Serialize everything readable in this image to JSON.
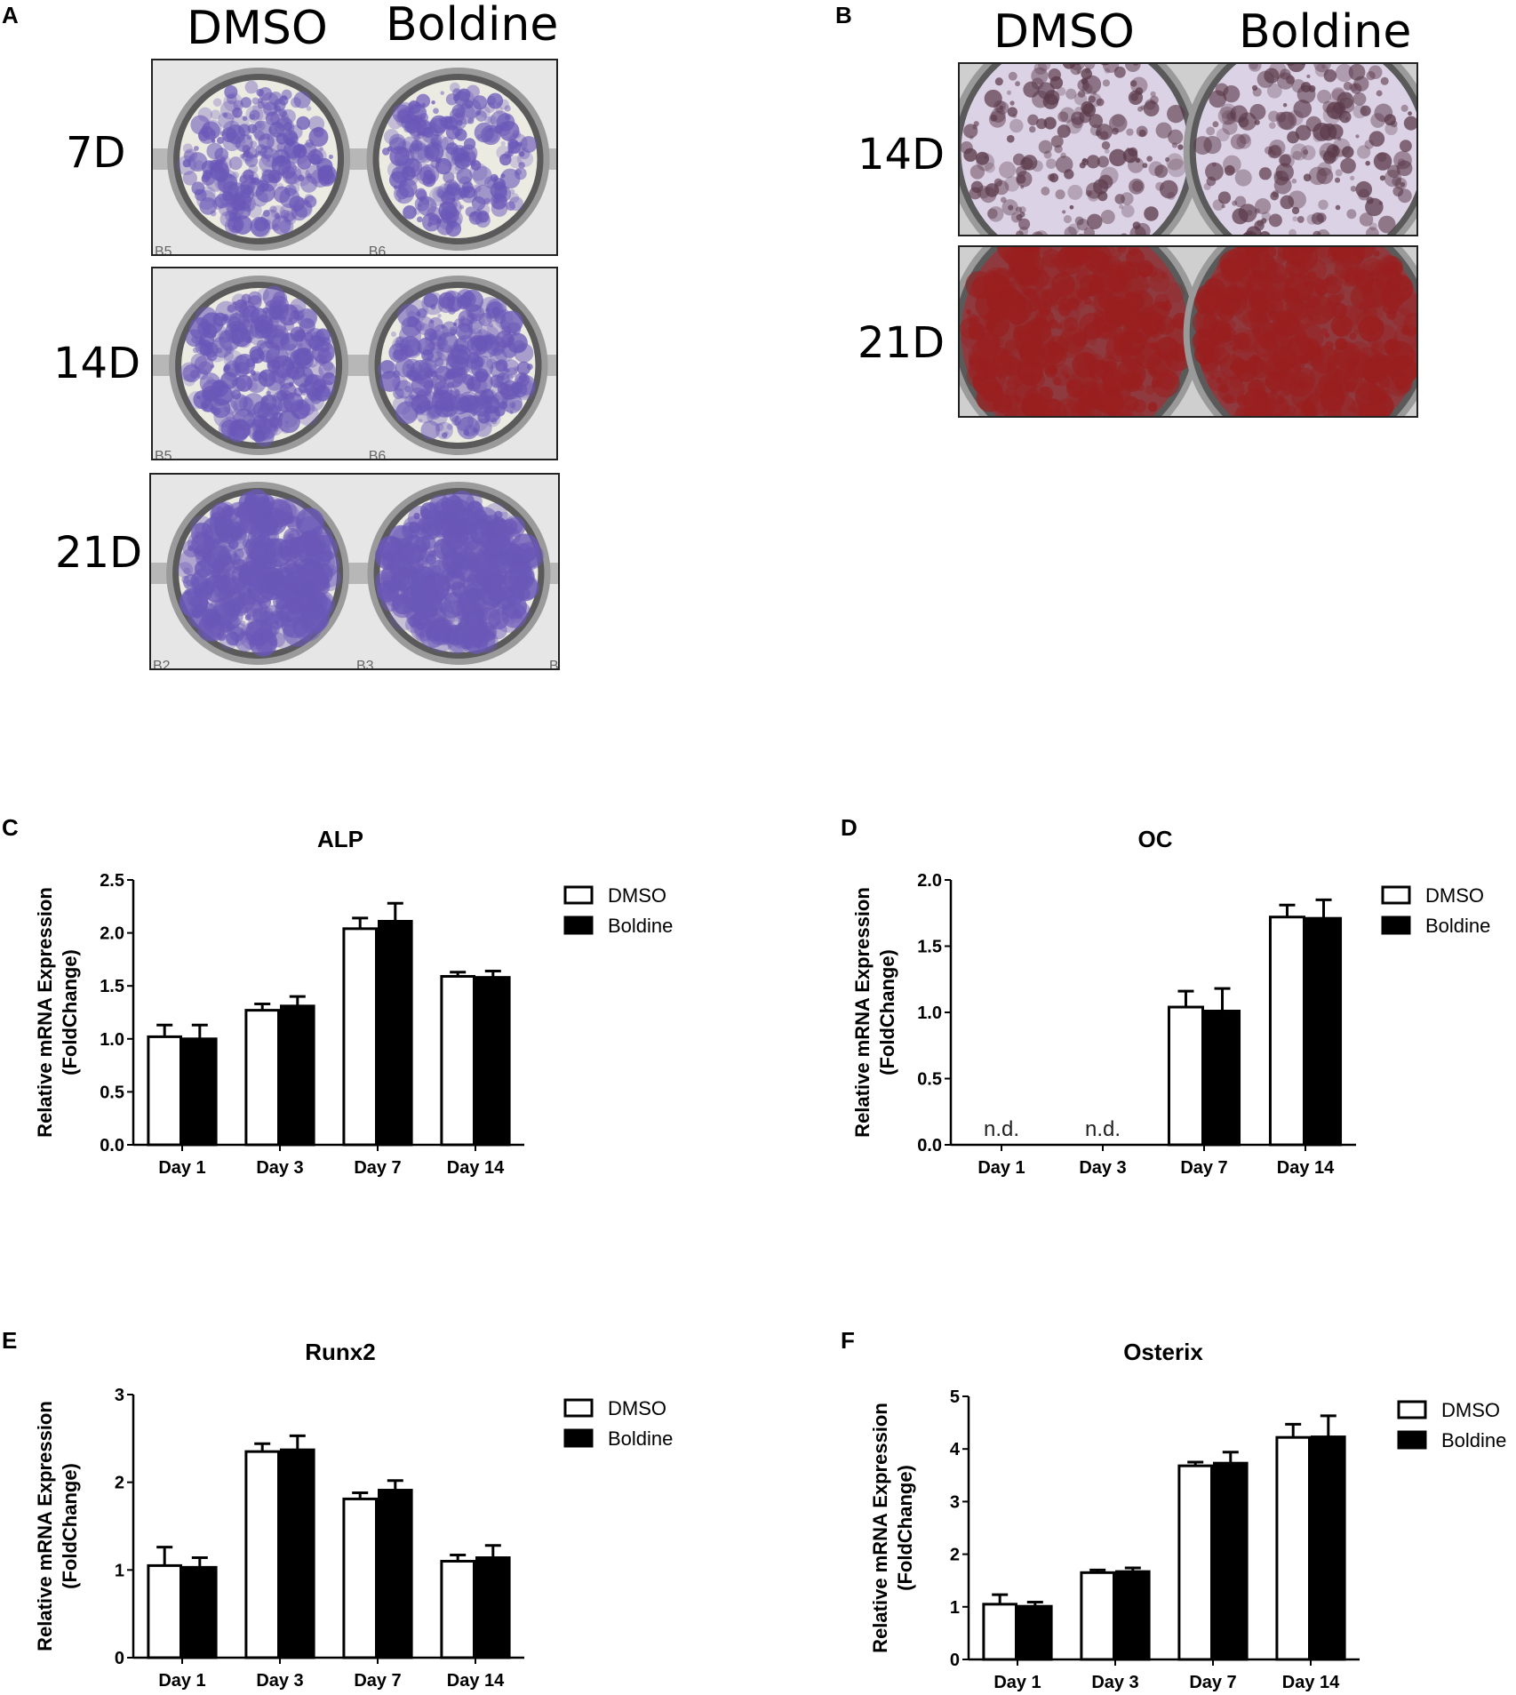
{
  "panels": {
    "A": {
      "letter": "A",
      "col_labels": [
        "DMSO",
        "Boldine"
      ],
      "rows": [
        {
          "label": "7D",
          "well_labels": [
            "B5",
            "B6"
          ],
          "stain": "alp",
          "intensity": 0.35
        },
        {
          "label": "14D",
          "well_labels": [
            "B5",
            "B6"
          ],
          "stain": "alp",
          "intensity": 0.5
        },
        {
          "label": "21D",
          "well_labels": [
            "B2",
            "B3",
            "B"
          ],
          "stain": "alp",
          "intensity": 0.85
        }
      ]
    },
    "B": {
      "letter": "B",
      "col_labels": [
        "DMSO",
        "Boldine"
      ],
      "rows": [
        {
          "label": "14D",
          "stain": "ars",
          "intensity": 0.25
        },
        {
          "label": "21D",
          "stain": "ars",
          "intensity": 0.9
        }
      ]
    }
  },
  "colors": {
    "alp_purple": "#6a58b8",
    "ars_red": "#9a1f1f",
    "plate_grey": "#b7b7b7",
    "bar_white": "#ffffff",
    "bar_black": "#000000"
  },
  "chart_data": [
    {
      "letter": "C",
      "type": "bar",
      "title": "ALP",
      "ylabel": [
        "Relative mRNA Expression",
        "(FoldChange)"
      ],
      "categories": [
        "Day 1",
        "Day 3",
        "Day 7",
        "Day 14"
      ],
      "ylim": [
        0,
        2.5
      ],
      "yticks": [
        "0.0",
        "0.5",
        "1.0",
        "1.5",
        "2.0",
        "2.5"
      ],
      "series": [
        {
          "name": "DMSO",
          "values": [
            1.02,
            1.27,
            2.04,
            1.59
          ],
          "errors": [
            0.11,
            0.06,
            0.1,
            0.04
          ]
        },
        {
          "name": "Boldine",
          "values": [
            1.0,
            1.31,
            2.11,
            1.58
          ],
          "errors": [
            0.13,
            0.09,
            0.17,
            0.06
          ]
        }
      ],
      "annotations": []
    },
    {
      "letter": "D",
      "type": "bar",
      "title": "OC",
      "ylabel": [
        "Relative mRNA Expression",
        "(FoldChange)"
      ],
      "categories": [
        "Day 1",
        "Day 3",
        "Day 7",
        "Day 14"
      ],
      "ylim": [
        0,
        2.0
      ],
      "yticks": [
        "0.0",
        "0.5",
        "1.0",
        "1.5",
        "2.0"
      ],
      "series": [
        {
          "name": "DMSO",
          "values": [
            null,
            null,
            1.04,
            1.72
          ],
          "errors": [
            0,
            0,
            0.12,
            0.09
          ]
        },
        {
          "name": "Boldine",
          "values": [
            null,
            null,
            1.01,
            1.71
          ],
          "errors": [
            0,
            0,
            0.17,
            0.14
          ]
        }
      ],
      "annotations": [
        "n.d.",
        "n.d."
      ]
    },
    {
      "letter": "E",
      "type": "bar",
      "title": "Runx2",
      "ylabel": [
        "Relative mRNA Expression",
        "(FoldChange)"
      ],
      "categories": [
        "Day 1",
        "Day 3",
        "Day 7",
        "Day 14"
      ],
      "ylim": [
        0,
        3
      ],
      "yticks": [
        "0",
        "1",
        "2",
        "3"
      ],
      "series": [
        {
          "name": "DMSO",
          "values": [
            1.05,
            2.35,
            1.81,
            1.1
          ],
          "errors": [
            0.21,
            0.09,
            0.07,
            0.07
          ]
        },
        {
          "name": "Boldine",
          "values": [
            1.03,
            2.37,
            1.91,
            1.14
          ],
          "errors": [
            0.11,
            0.16,
            0.11,
            0.14
          ]
        }
      ],
      "annotations": []
    },
    {
      "letter": "F",
      "type": "bar",
      "title": "Osterix",
      "ylabel": [
        "Relative mRNA Expression",
        "(FoldChange)"
      ],
      "categories": [
        "Day 1",
        "Day 3",
        "Day 7",
        "Day 14"
      ],
      "ylim": [
        0,
        5
      ],
      "yticks": [
        "0",
        "1",
        "2",
        "3",
        "4",
        "5"
      ],
      "series": [
        {
          "name": "DMSO",
          "values": [
            1.05,
            1.65,
            3.68,
            4.22
          ],
          "errors": [
            0.18,
            0.05,
            0.07,
            0.25
          ]
        },
        {
          "name": "Boldine",
          "values": [
            1.01,
            1.67,
            3.73,
            4.23
          ],
          "errors": [
            0.08,
            0.07,
            0.21,
            0.4
          ]
        }
      ],
      "annotations": []
    }
  ]
}
